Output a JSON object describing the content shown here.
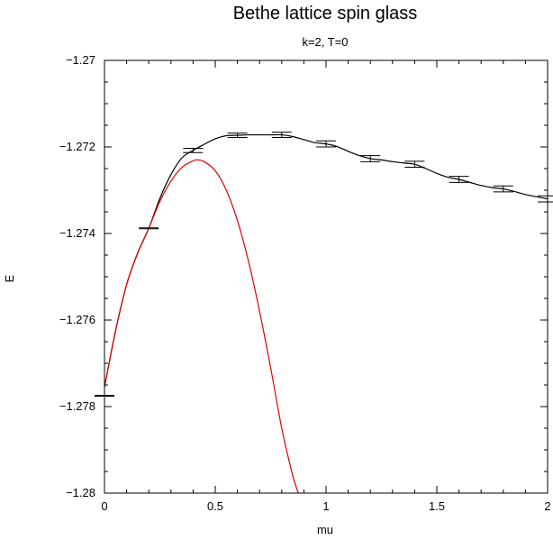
{
  "chart_data": {
    "type": "line",
    "title": "Bethe lattice spin glass",
    "subtitle": "k=2, T=0",
    "xlabel": "mu",
    "ylabel": "E",
    "xlim": [
      0,
      2
    ],
    "ylim": [
      -1.28,
      -1.27
    ],
    "xticks": [
      {
        "value": 0,
        "label": "0"
      },
      {
        "value": 0.5,
        "label": "0.5"
      },
      {
        "value": 1,
        "label": "1"
      },
      {
        "value": 1.5,
        "label": "1.5"
      },
      {
        "value": 2,
        "label": "2"
      }
    ],
    "yticks": [
      {
        "value": -1.28,
        "label": "−1.28"
      },
      {
        "value": -1.278,
        "label": "−1.278"
      },
      {
        "value": -1.276,
        "label": "−1.276"
      },
      {
        "value": -1.274,
        "label": "−1.274"
      },
      {
        "value": -1.272,
        "label": "−1.272"
      },
      {
        "value": -1.27,
        "label": "−1.27"
      }
    ],
    "grid": false,
    "series": [
      {
        "kind": "errorbar",
        "color": "#000000",
        "points": [
          {
            "x": 0,
            "y": -1.27775,
            "err": 1e-05
          },
          {
            "x": 0.2,
            "y": -1.27388,
            "err": 1e-05
          },
          {
            "x": 0.4,
            "y": -1.27208,
            "err": 5e-05
          },
          {
            "x": 0.6,
            "y": -1.27173,
            "err": 5e-05
          },
          {
            "x": 0.8,
            "y": -1.27172,
            "err": 6e-05
          },
          {
            "x": 1.0,
            "y": -1.27193,
            "err": 7e-05
          },
          {
            "x": 1.2,
            "y": -1.27227,
            "err": 7e-05
          },
          {
            "x": 1.4,
            "y": -1.2724,
            "err": 7e-05
          },
          {
            "x": 1.6,
            "y": -1.27275,
            "err": 7e-05
          },
          {
            "x": 1.8,
            "y": -1.27297,
            "err": 7e-05
          },
          {
            "x": 2.0,
            "y": -1.2732,
            "err": 7e-05
          }
        ]
      },
      {
        "kind": "line",
        "color": "#000000",
        "x": [
          0,
          0.05,
          0.1,
          0.15,
          0.2,
          0.25,
          0.3,
          0.35,
          0.4,
          0.45,
          0.5,
          0.55,
          0.6,
          0.65,
          0.7,
          0.75,
          0.8,
          0.85,
          0.9,
          0.95,
          1.0,
          1.05,
          1.1,
          1.15,
          1.2,
          1.25,
          1.3,
          1.35,
          1.4,
          1.45,
          1.5,
          1.55,
          1.6,
          1.65,
          1.7,
          1.75,
          1.8,
          1.85,
          1.9,
          1.95,
          2.0
        ],
        "y": [
          -1.27755,
          -1.27625,
          -1.27518,
          -1.27445,
          -1.27388,
          -1.27319,
          -1.27264,
          -1.27225,
          -1.27208,
          -1.27194,
          -1.27181,
          -1.27174,
          -1.27173,
          -1.27172,
          -1.27172,
          -1.27172,
          -1.27172,
          -1.27176,
          -1.27183,
          -1.2719,
          -1.27193,
          -1.27199,
          -1.2721,
          -1.2722,
          -1.27227,
          -1.2723,
          -1.27234,
          -1.27237,
          -1.2724,
          -1.2725,
          -1.27261,
          -1.2727,
          -1.27275,
          -1.27282,
          -1.27289,
          -1.27294,
          -1.27297,
          -1.27303,
          -1.2731,
          -1.27315,
          -1.2732
        ]
      },
      {
        "kind": "line",
        "color": "#dd0000",
        "x": [
          0,
          0.05,
          0.1,
          0.15,
          0.2,
          0.25,
          0.3,
          0.35,
          0.4,
          0.42,
          0.45,
          0.5,
          0.55,
          0.6,
          0.65,
          0.7,
          0.75,
          0.8,
          0.85,
          0.875
        ],
        "y": [
          -1.27755,
          -1.27625,
          -1.27518,
          -1.27445,
          -1.27388,
          -1.27326,
          -1.27279,
          -1.27247,
          -1.27232,
          -1.2723,
          -1.27234,
          -1.27255,
          -1.273,
          -1.2737,
          -1.27464,
          -1.2758,
          -1.2771,
          -1.2785,
          -1.2796,
          -1.28
        ]
      }
    ]
  }
}
